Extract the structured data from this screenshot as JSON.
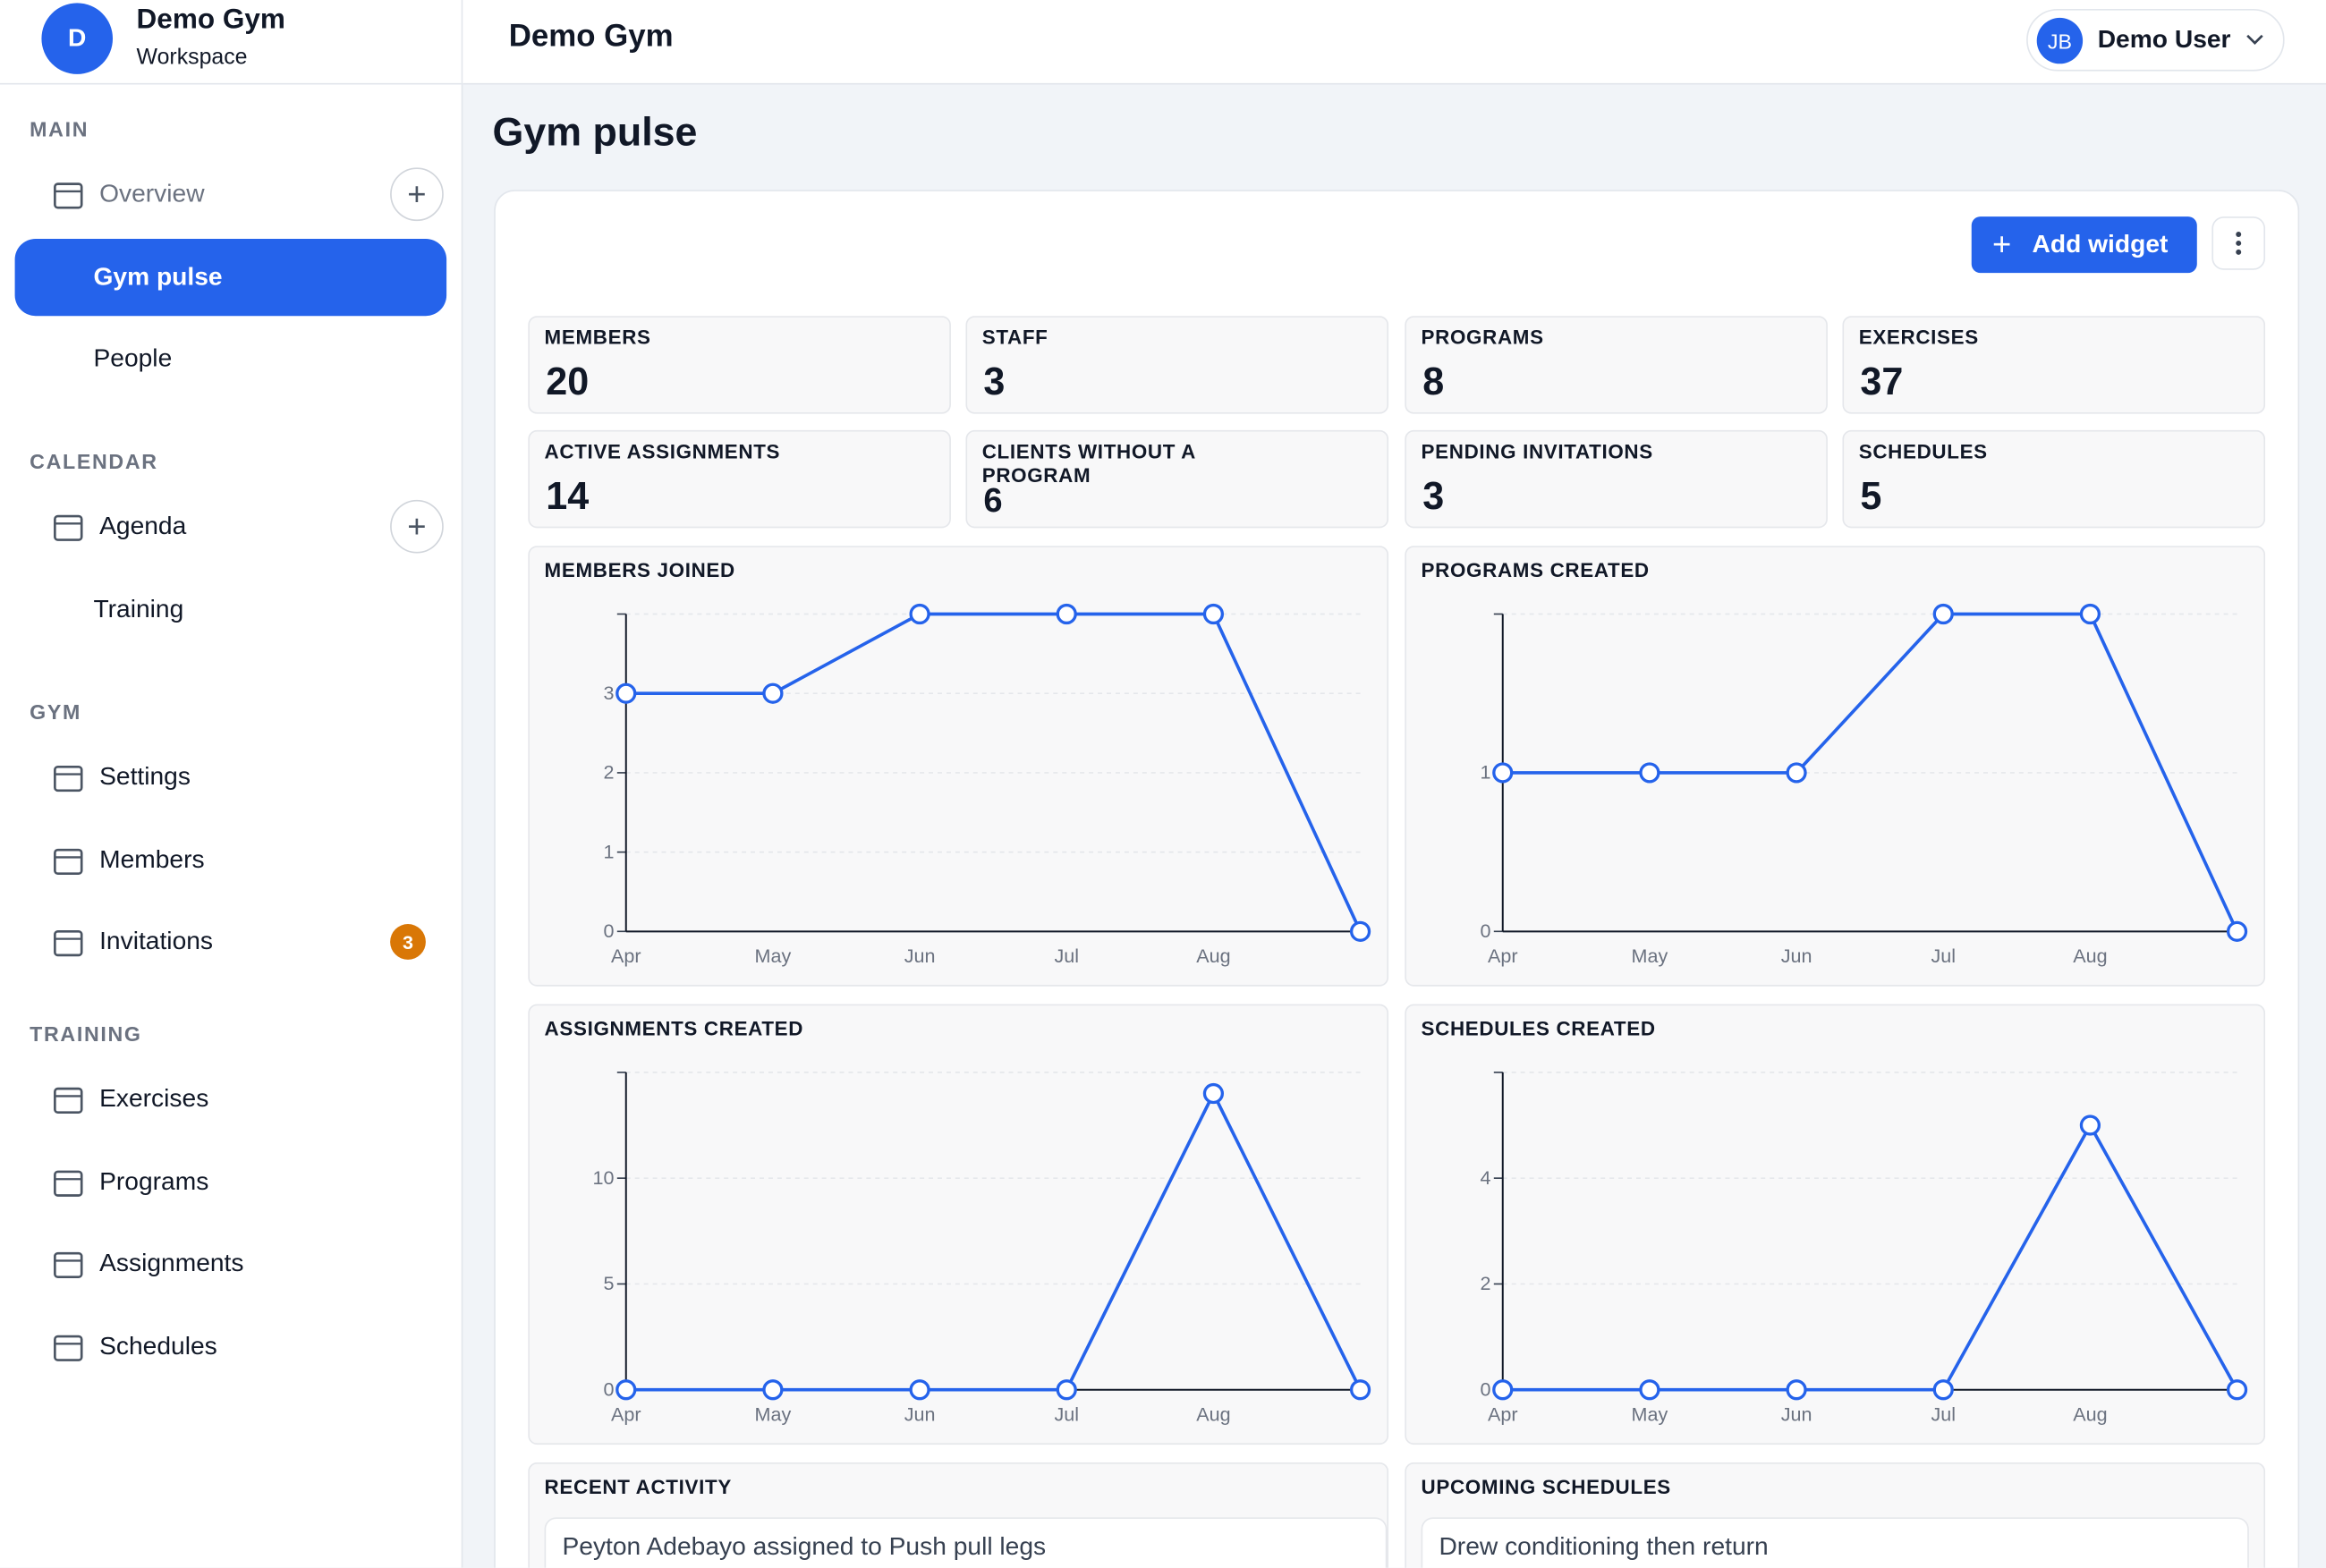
{
  "sidebar": {
    "workspace": {
      "initial": "D",
      "name": "Demo Gym",
      "subtitle": "Workspace"
    },
    "sections": [
      {
        "title": "MAIN",
        "items": [
          {
            "label": "Overview"
          },
          {
            "label": "Gym pulse"
          },
          {
            "label": "People"
          }
        ]
      },
      {
        "title": "CALENDAR",
        "items": [
          {
            "label": "Agenda"
          },
          {
            "label": "Training"
          }
        ]
      },
      {
        "title": "GYM",
        "items": [
          {
            "label": "Settings"
          },
          {
            "label": "Members"
          },
          {
            "label": "Invitations",
            "badge": 3
          }
        ]
      },
      {
        "title": "TRAINING",
        "items": [
          {
            "label": "Exercises"
          },
          {
            "label": "Programs"
          },
          {
            "label": "Assignments"
          },
          {
            "label": "Schedules"
          }
        ]
      }
    ]
  },
  "header": {
    "title": "Demo Gym",
    "user_initials": "JB",
    "user_name": "Demo User"
  },
  "page": {
    "title": "Gym pulse",
    "add_widget": "Add widget"
  },
  "stats": [
    {
      "label": "MEMBERS",
      "value": 20
    },
    {
      "label": "STAFF",
      "value": 3
    },
    {
      "label": "PROGRAMS",
      "value": 8
    },
    {
      "label": "EXERCISES",
      "value": 37
    },
    {
      "label": "ACTIVE ASSIGNMENTS",
      "value": 14
    },
    {
      "label": "CLIENTS WITHOUT A PROGRAM",
      "value": 6
    },
    {
      "label": "PENDING INVITATIONS",
      "value": 3
    },
    {
      "label": "SCHEDULES",
      "value": 5
    }
  ],
  "charts": [
    {
      "type": "line",
      "title": "MEMBERS JOINED",
      "categories": [
        "Apr",
        "May",
        "Jun",
        "Jul",
        "Aug",
        null
      ],
      "values": [
        3,
        3,
        4,
        4,
        4,
        0
      ],
      "ylim": [
        0,
        4
      ],
      "yticks": [
        0,
        1,
        2,
        3
      ],
      "color": "#2563eb"
    },
    {
      "type": "line",
      "title": "PROGRAMS CREATED",
      "categories": [
        "Apr",
        "May",
        "Jun",
        "Jul",
        "Aug",
        null
      ],
      "values": [
        1,
        1,
        1,
        2,
        2,
        0
      ],
      "ylim": [
        0,
        2
      ],
      "yticks": [
        0,
        1
      ],
      "color": "#2563eb"
    },
    {
      "type": "line",
      "title": "ASSIGNMENTS CREATED",
      "categories": [
        "Apr",
        "May",
        "Jun",
        "Jul",
        "Aug",
        null
      ],
      "values": [
        0,
        0,
        0,
        0,
        14,
        0
      ],
      "ylim": [
        0,
        15
      ],
      "yticks": [
        0,
        5,
        10
      ],
      "color": "#2563eb"
    },
    {
      "type": "line",
      "title": "SCHEDULES CREATED",
      "categories": [
        "Apr",
        "May",
        "Jun",
        "Jul",
        "Aug",
        null
      ],
      "values": [
        0,
        0,
        0,
        0,
        5,
        0
      ],
      "ylim": [
        0,
        6
      ],
      "yticks": [
        0,
        2,
        4
      ],
      "color": "#2563eb"
    }
  ],
  "lists": [
    {
      "title": "RECENT ACTIVITY",
      "items": [
        "Peyton Adebayo assigned to Push pull legs"
      ]
    },
    {
      "title": "UPCOMING SCHEDULES",
      "items": [
        "Drew conditioning then return"
      ]
    }
  ]
}
